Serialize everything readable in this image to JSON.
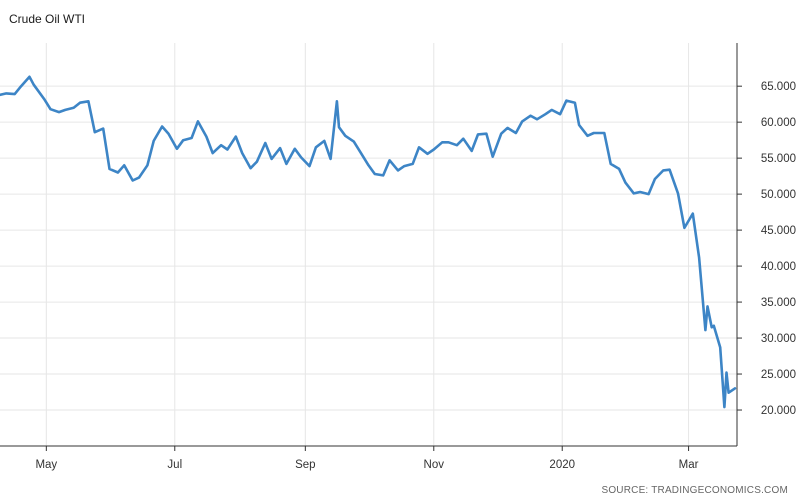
{
  "chart_data": {
    "type": "line",
    "title": "Crude Oil WTI",
    "xlabel": "",
    "ylabel": "",
    "source": "SOURCE: TRADINGECONOMICS.COM",
    "x_tick_labels": [
      "May",
      "Jul",
      "Sep",
      "Nov",
      "2020",
      "Mar"
    ],
    "x_tick_dates": [
      "2019-05-01",
      "2019-07-01",
      "2019-09-01",
      "2019-11-01",
      "2020-01-01",
      "2020-03-01"
    ],
    "xlim": [
      "2019-04-09",
      "2020-03-24"
    ],
    "ylim": [
      15,
      71
    ],
    "y_ticks": [
      "20.000",
      "25.000",
      "30.000",
      "35.000",
      "40.000",
      "45.000",
      "50.000",
      "55.000",
      "60.000",
      "65.000"
    ],
    "y_tick_values": [
      20,
      25,
      30,
      35,
      40,
      45,
      50,
      55,
      60,
      65
    ],
    "grid": true,
    "legend": "none",
    "line_color": "#3d85c6",
    "series": [
      {
        "x": [
          "2019-04-09",
          "2019-04-12",
          "2019-04-16",
          "2019-04-19",
          "2019-04-23",
          "2019-04-25",
          "2019-04-30",
          "2019-05-03",
          "2019-05-07",
          "2019-05-10",
          "2019-05-14",
          "2019-05-17",
          "2019-05-21",
          "2019-05-24",
          "2019-05-28",
          "2019-05-31",
          "2019-06-04",
          "2019-06-07",
          "2019-06-11",
          "2019-06-14",
          "2019-06-18",
          "2019-06-21",
          "2019-06-25",
          "2019-06-28",
          "2019-07-02",
          "2019-07-05",
          "2019-07-09",
          "2019-07-12",
          "2019-07-16",
          "2019-07-19",
          "2019-07-23",
          "2019-07-26",
          "2019-07-30",
          "2019-08-02",
          "2019-08-06",
          "2019-08-09",
          "2019-08-13",
          "2019-08-16",
          "2019-08-20",
          "2019-08-23",
          "2019-08-27",
          "2019-08-30",
          "2019-09-03",
          "2019-09-06",
          "2019-09-10",
          "2019-09-13",
          "2019-09-16",
          "2019-09-17",
          "2019-09-20",
          "2019-09-24",
          "2019-09-27",
          "2019-10-01",
          "2019-10-04",
          "2019-10-08",
          "2019-10-11",
          "2019-10-15",
          "2019-10-18",
          "2019-10-22",
          "2019-10-25",
          "2019-10-29",
          "2019-11-01",
          "2019-11-05",
          "2019-11-08",
          "2019-11-12",
          "2019-11-15",
          "2019-11-19",
          "2019-11-22",
          "2019-11-26",
          "2019-11-29",
          "2019-12-03",
          "2019-12-06",
          "2019-12-10",
          "2019-12-13",
          "2019-12-17",
          "2019-12-20",
          "2019-12-24",
          "2019-12-27",
          "2019-12-31",
          "2020-01-03",
          "2020-01-07",
          "2020-01-09",
          "2020-01-13",
          "2020-01-16",
          "2020-01-21",
          "2020-01-24",
          "2020-01-28",
          "2020-01-31",
          "2020-02-04",
          "2020-02-07",
          "2020-02-11",
          "2020-02-14",
          "2020-02-18",
          "2020-02-21",
          "2020-02-25",
          "2020-02-28",
          "2020-03-03",
          "2020-03-06",
          "2020-03-09",
          "2020-03-10",
          "2020-03-12",
          "2020-03-13",
          "2020-03-16",
          "2020-03-18",
          "2020-03-19",
          "2020-03-20",
          "2020-03-23"
        ],
        "y": [
          63.8,
          64.0,
          63.9,
          65.0,
          66.3,
          65.2,
          63.2,
          61.8,
          61.4,
          61.7,
          62.0,
          62.7,
          62.9,
          58.6,
          59.1,
          53.5,
          53.0,
          54.0,
          51.9,
          52.3,
          54.0,
          57.4,
          59.4,
          58.4,
          56.3,
          57.5,
          57.8,
          60.1,
          58.0,
          55.7,
          56.8,
          56.2,
          58.0,
          55.7,
          53.6,
          54.5,
          57.1,
          54.9,
          56.4,
          54.2,
          56.3,
          55.1,
          53.9,
          56.5,
          57.4,
          54.9,
          62.9,
          59.3,
          58.1,
          57.3,
          55.9,
          54.0,
          52.8,
          52.6,
          54.7,
          53.3,
          53.9,
          54.2,
          56.5,
          55.6,
          56.2,
          57.2,
          57.2,
          56.8,
          57.7,
          56.0,
          58.3,
          58.4,
          55.2,
          58.4,
          59.2,
          58.5,
          60.1,
          60.9,
          60.4,
          61.1,
          61.7,
          61.1,
          63.0,
          62.7,
          59.6,
          58.1,
          58.5,
          58.5,
          54.2,
          53.5,
          51.6,
          50.1,
          50.3,
          50.0,
          52.1,
          53.3,
          53.4,
          50.1,
          45.3,
          47.3,
          41.2,
          31.1,
          34.4,
          31.5,
          31.7,
          28.7,
          20.4,
          25.2,
          22.4,
          23.0
        ]
      }
    ]
  }
}
